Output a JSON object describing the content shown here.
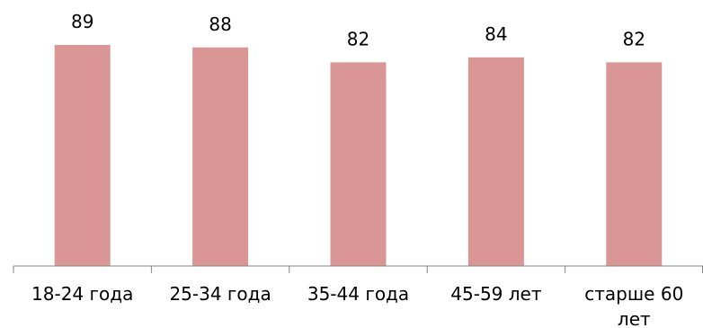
{
  "chart_data": {
    "type": "bar",
    "categories": [
      [
        "18-24 года"
      ],
      [
        "25-34 года"
      ],
      [
        "35-44 года"
      ],
      [
        "45-59 лет"
      ],
      [
        "старше 60",
        "лет"
      ]
    ],
    "values": [
      89,
      88,
      82,
      84,
      82
    ],
    "data_labels": [
      "89",
      "88",
      "82",
      "84",
      "82"
    ],
    "title": "",
    "xlabel": "",
    "ylabel": "",
    "grid": false,
    "legend": "none",
    "colors": {
      "bar": "#d99694",
      "axis": "#868686",
      "text": "#000000",
      "background": "#ffffff"
    }
  }
}
